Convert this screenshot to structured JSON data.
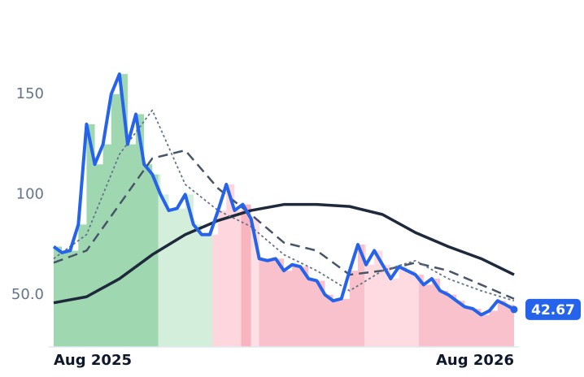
{
  "chart_data": {
    "type": "line",
    "x": [
      0,
      1,
      2,
      3,
      4,
      5,
      6,
      7,
      8,
      9,
      10,
      11,
      12,
      13,
      14,
      15,
      16,
      17,
      18,
      19,
      20,
      21,
      22,
      23,
      24,
      25,
      26,
      27,
      28,
      29,
      30,
      31,
      32,
      33,
      34,
      35,
      36,
      37,
      38,
      39,
      40,
      41,
      42,
      43,
      44,
      45,
      46,
      47,
      48,
      49,
      50,
      51,
      52,
      53,
      54,
      55,
      56
    ],
    "xlim": [
      0,
      56
    ],
    "xticks": [
      {
        "value": 0,
        "label": "Aug 2025"
      },
      {
        "value": 56,
        "label": "Aug 2026"
      }
    ],
    "ylim": [
      24,
      188
    ],
    "yticks": [
      {
        "value": 50,
        "label": "50.0"
      },
      100,
      150
    ],
    "series": [
      {
        "color": "#2563eb",
        "style": "solid",
        "width": 4,
        "values": [
          74,
          71,
          72,
          85,
          135,
          115,
          125,
          150,
          160,
          125,
          140,
          115,
          110,
          100,
          92,
          93,
          100,
          85,
          80,
          80,
          92,
          105,
          92,
          95,
          88,
          68,
          67,
          68,
          62,
          65,
          64,
          58,
          57,
          50,
          47,
          48,
          62,
          75,
          65,
          72,
          65,
          58,
          64,
          62,
          60,
          55,
          58,
          52,
          50,
          47,
          44,
          43,
          40,
          42,
          47,
          45,
          42.67
        ]
      },
      {
        "color": "#1e293b",
        "style": "solid",
        "width": 3.5,
        "x": [
          0,
          4,
          8,
          12,
          16,
          20,
          24,
          28,
          32,
          36,
          40,
          44,
          48,
          52,
          56
        ],
        "values": [
          46,
          49,
          58,
          70,
          80,
          87,
          92,
          95,
          95,
          94,
          90,
          81,
          74,
          68,
          60
        ]
      },
      {
        "color": "#475569",
        "style": "dashed",
        "width": 2.5,
        "x": [
          0,
          4,
          8,
          12,
          16,
          20,
          24,
          28,
          32,
          36,
          40,
          44,
          48,
          52,
          56
        ],
        "values": [
          66,
          72,
          95,
          118,
          122,
          103,
          90,
          76,
          72,
          60,
          62,
          66,
          62,
          55,
          48
        ]
      },
      {
        "color": "#64748b",
        "style": "dotted",
        "width": 1.8,
        "x": [
          0,
          4,
          8,
          12,
          16,
          20,
          24,
          28,
          32,
          36,
          40,
          44,
          48,
          52,
          56
        ],
        "values": [
          68,
          80,
          120,
          142,
          105,
          92,
          84,
          70,
          62,
          52,
          62,
          67,
          58,
          52,
          47
        ]
      }
    ],
    "zones": [
      {
        "from": 0,
        "to": 12.7,
        "color": "#9fd8b0"
      },
      {
        "from": 12.7,
        "to": 19.3,
        "color": "#d4eedc"
      },
      {
        "from": 19.3,
        "to": 22.8,
        "color": "#fdd7dd"
      },
      {
        "from": 22.8,
        "to": 24,
        "color": "#f8b4bf"
      },
      {
        "from": 24,
        "to": 25,
        "color": "#fde0e5"
      },
      {
        "from": 25,
        "to": 37.8,
        "color": "#f9c1cb"
      },
      {
        "from": 37.8,
        "to": 44.4,
        "color": "#fddbe1"
      },
      {
        "from": 44.4,
        "to": 56,
        "color": "#f9c1cb"
      }
    ]
  }
}
